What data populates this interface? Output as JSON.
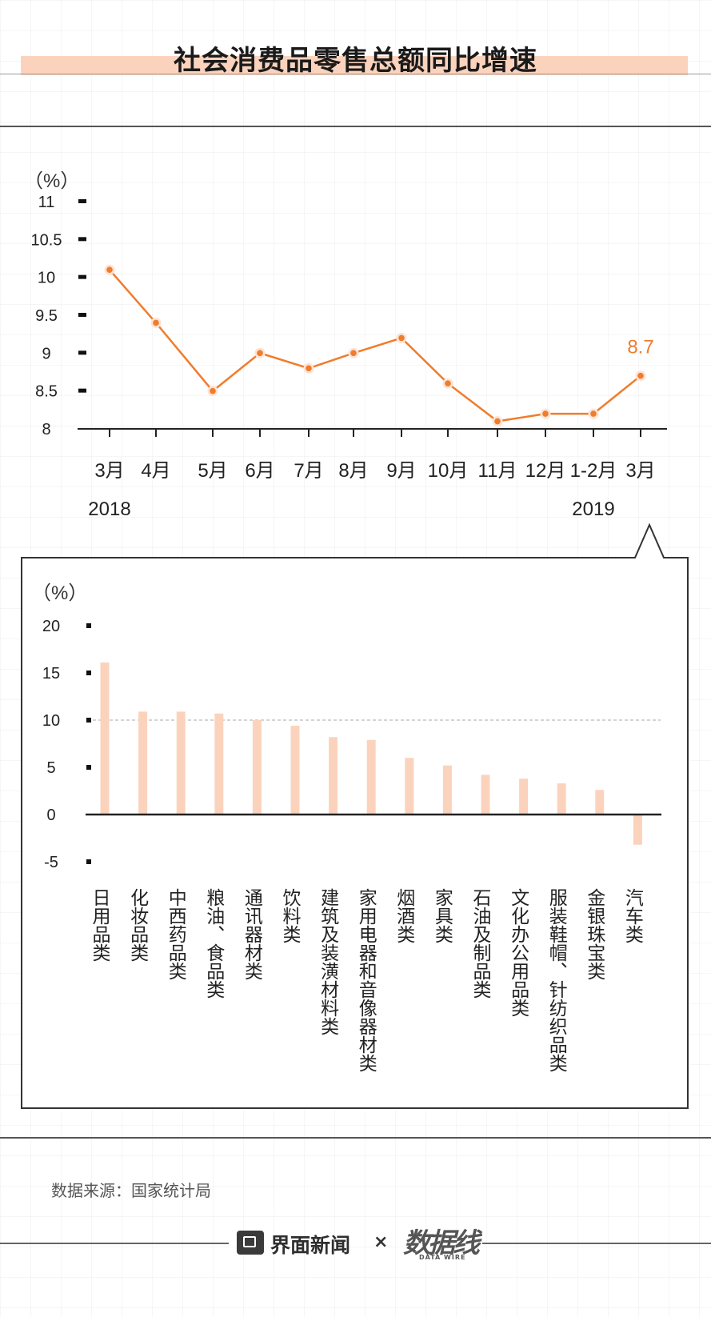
{
  "page": {
    "title": "社会消费品零售总额同比增速",
    "source": "数据来源：国家统计局",
    "logo_text": "界面新闻",
    "times": "×",
    "partner_logo": "数据线",
    "partner_sub": "DATA WIRE"
  },
  "chart_data": [
    {
      "type": "line",
      "unit_label": "（%）",
      "categories": [
        "3月",
        "4月",
        "5月",
        "6月",
        "7月",
        "8月",
        "9月",
        "10月",
        "11月",
        "12月",
        "1-2月",
        "3月"
      ],
      "year_labels": [
        {
          "index": 0,
          "text": "2018"
        },
        {
          "index": 10,
          "text": "2019"
        }
      ],
      "values": [
        10.1,
        9.4,
        8.5,
        9.0,
        8.8,
        9.0,
        9.2,
        8.6,
        8.1,
        8.2,
        8.2,
        8.7
      ],
      "annotation": {
        "index": 11,
        "text": "8.7"
      },
      "yticks": [
        "8",
        "8.5",
        "9",
        "9.5",
        "10",
        "10.5",
        "11"
      ],
      "ylim": [
        8,
        11
      ],
      "color": "#f07c2c"
    },
    {
      "type": "bar",
      "unit_label": "（%）",
      "categories": [
        "日用品类",
        "化妆品类",
        "中西药品类",
        "粮油、食品类",
        "通讯器材类",
        "饮料类",
        "建筑及装潢材料类",
        "家用电器和音像器材类",
        "烟酒类",
        "家具类",
        "石油及制品类",
        "文化办公用品类",
        "服装鞋帽、针纺织品类",
        "金银珠宝类",
        "汽车类"
      ],
      "values": [
        16.1,
        10.9,
        10.9,
        10.7,
        10.0,
        9.4,
        8.2,
        7.9,
        6.0,
        5.2,
        4.2,
        3.8,
        3.3,
        2.6,
        -3.2
      ],
      "yticks": [
        "-5",
        "0",
        "5",
        "10",
        "15",
        "20"
      ],
      "ylim": [
        -5,
        20
      ],
      "reference_line": 10,
      "color": "#fbd3bd"
    }
  ]
}
